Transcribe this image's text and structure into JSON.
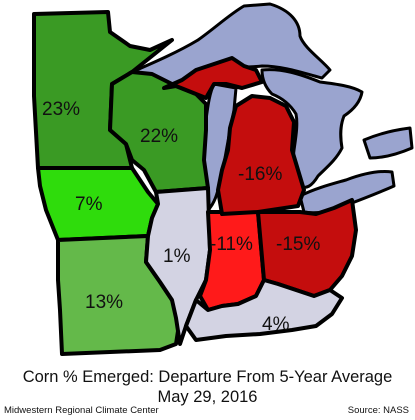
{
  "map": {
    "states": [
      {
        "id": "minnesota",
        "value": "23%",
        "color": "#3a9a24"
      },
      {
        "id": "wisconsin",
        "value": "22%",
        "color": "#3a9a24"
      },
      {
        "id": "iowa",
        "value": "7%",
        "color": "#2fdc0c"
      },
      {
        "id": "missouri",
        "value": "13%",
        "color": "#64b94a"
      },
      {
        "id": "illinois",
        "value": "1%",
        "color": "#d3d3e3"
      },
      {
        "id": "indiana",
        "value": "-11%",
        "color": "#ff1a1a"
      },
      {
        "id": "michigan",
        "value": "-16%",
        "color": "#c40d0d"
      },
      {
        "id": "ohio",
        "value": "-15%",
        "color": "#c40d0d"
      },
      {
        "id": "kentucky",
        "value": "4%",
        "color": "#d3d3e3"
      }
    ],
    "lake_color": "#9aa4cf"
  },
  "caption": {
    "title": "Corn % Emerged: Departure From 5-Year Average",
    "date": "May 29, 2016"
  },
  "credits": {
    "left": "Midwestern Regional Climate Center",
    "right": "Source: NASS"
  }
}
